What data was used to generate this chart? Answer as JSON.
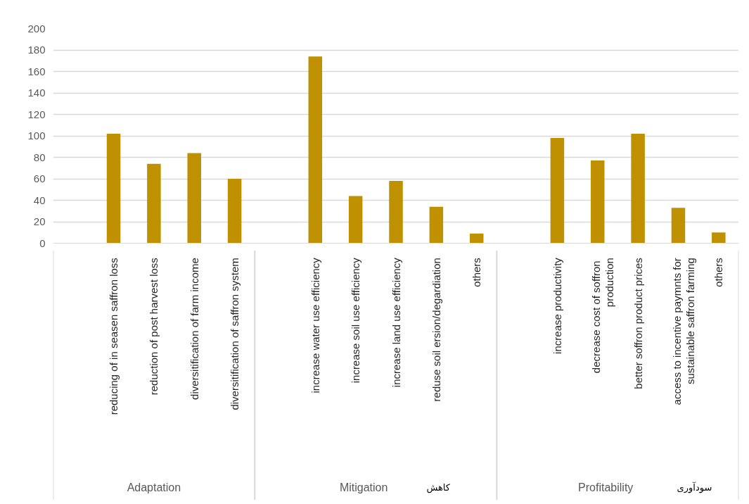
{
  "chart_data": {
    "type": "bar",
    "categories": [
      null,
      "reducing of in seasen saffron loss",
      "reduction of post harvest loss",
      "diversitification of farm income",
      "diversitification of saffron system",
      null,
      "increase water use efficiency",
      "increase soil use efficiency",
      "increase land use efficiency",
      "reduse soil ersion/degardiation",
      "others",
      null,
      "increase productivity",
      "decrease  cost of soffron production",
      "better soffron product prices",
      "access to incentive paymnts for sustainable saffron farming",
      "others"
    ],
    "series": [
      {
        "color": "#bf9000",
        "values": [
          null,
          102,
          74,
          84,
          60,
          null,
          174,
          44,
          58,
          34,
          9,
          null,
          98,
          77,
          102,
          33,
          10
        ]
      }
    ],
    "ylim": [
      0,
      200
    ],
    "yticks": [
      0,
      20,
      40,
      60,
      80,
      100,
      120,
      140,
      160,
      180,
      200
    ],
    "grid": "y",
    "annotations": [
      "Adaptation",
      "Mitigation",
      "کاهش",
      "Profitability",
      "سودآوری"
    ]
  }
}
